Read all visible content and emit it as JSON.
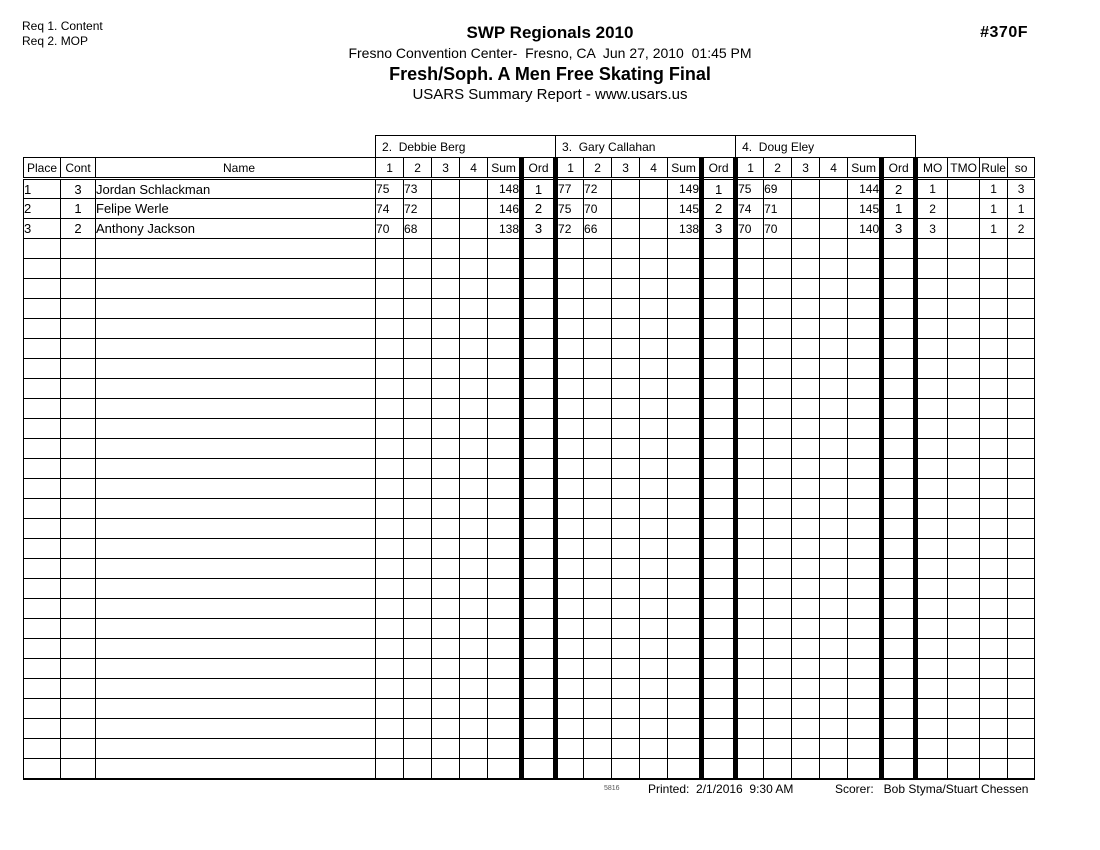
{
  "page": {
    "req_notes": [
      "Req 1. Content",
      "Req 2. MOP"
    ],
    "doc_number": "#370F",
    "title": "SWP Regionals 2010",
    "subtitle": "Fresno Convention Center-  Fresno, CA  Jun 27, 2010  01:45 PM",
    "event_title": "Fresh/Soph. A Men Free Skating Final",
    "report_title": "USARS Summary Report - www.usars.us"
  },
  "table": {
    "judges": [
      "2.  Debbie Berg",
      "3.  Gary Callahan",
      "4.  Doug Eley"
    ],
    "left_headers": [
      "Place",
      "Cont",
      "Name"
    ],
    "judge_headers": [
      "1",
      "2",
      "3",
      "4",
      "Sum",
      "Ord"
    ],
    "right_headers": [
      "MO",
      "TMO",
      "Rule",
      "so"
    ],
    "rows": [
      {
        "place": "1",
        "cont": "3",
        "name": "Jordan Schlackman",
        "judges": [
          {
            "scores": [
              "75",
              "73",
              "",
              ""
            ],
            "sum": "148",
            "ord": "1"
          },
          {
            "scores": [
              "77",
              "72",
              "",
              ""
            ],
            "sum": "149",
            "ord": "1"
          },
          {
            "scores": [
              "75",
              "69",
              "",
              ""
            ],
            "sum": "144",
            "ord": "2"
          }
        ],
        "mo": "1",
        "tmo": "",
        "rule": "1",
        "so": "3"
      },
      {
        "place": "2",
        "cont": "1",
        "name": "Felipe Werle",
        "judges": [
          {
            "scores": [
              "74",
              "72",
              "",
              ""
            ],
            "sum": "146",
            "ord": "2"
          },
          {
            "scores": [
              "75",
              "70",
              "",
              ""
            ],
            "sum": "145",
            "ord": "2"
          },
          {
            "scores": [
              "74",
              "71",
              "",
              ""
            ],
            "sum": "145",
            "ord": "1"
          }
        ],
        "mo": "2",
        "tmo": "",
        "rule": "1",
        "so": "1"
      },
      {
        "place": "3",
        "cont": "2",
        "name": "Anthony Jackson",
        "judges": [
          {
            "scores": [
              "70",
              "68",
              "",
              ""
            ],
            "sum": "138",
            "ord": "3"
          },
          {
            "scores": [
              "72",
              "66",
              "",
              ""
            ],
            "sum": "138",
            "ord": "3"
          },
          {
            "scores": [
              "70",
              "70",
              "",
              ""
            ],
            "sum": "140",
            "ord": "3"
          }
        ],
        "mo": "3",
        "tmo": "",
        "rule": "1",
        "so": "2"
      }
    ],
    "empty_row_count": 27
  },
  "footer": {
    "version": "5816",
    "printed": "Printed:  2/1/2016  9:30 AM",
    "scorer": "Scorer:   Bob Styma/Stuart Chessen"
  },
  "colors": {
    "ink": "#000000",
    "paper": "#ffffff"
  }
}
